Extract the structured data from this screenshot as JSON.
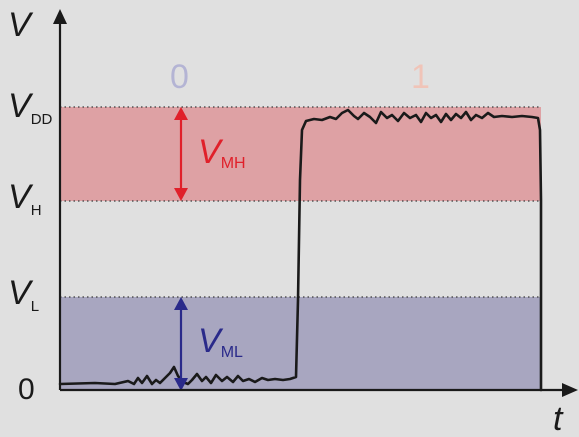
{
  "axes": {
    "y_label": "V",
    "x_label": "t"
  },
  "levels": {
    "vdd": {
      "main": "V",
      "sub": "DD"
    },
    "vh": {
      "main": "V",
      "sub": "H"
    },
    "vl": {
      "main": "V",
      "sub": "L"
    },
    "zero": "0"
  },
  "bits": {
    "low": "0",
    "high": "1"
  },
  "margins": {
    "high": {
      "main": "V",
      "sub": "MH"
    },
    "low": {
      "main": "V",
      "sub": "ML"
    }
  },
  "colors": {
    "background": "#e0e0e0",
    "high_band": "#dea1a4",
    "low_band": "#a8a6c0",
    "high_accent": "#e0202a",
    "low_accent": "#2a2a8a",
    "bit_low_text": "#b4b4d4",
    "bit_high_text": "#f0c4b8",
    "signal": "#1a1a1a"
  }
}
